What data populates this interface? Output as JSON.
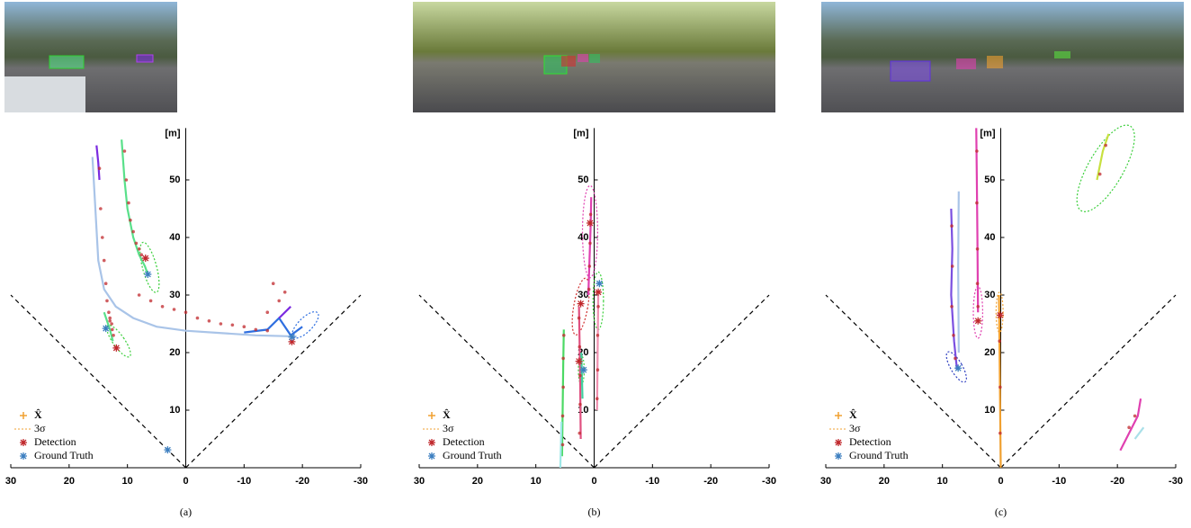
{
  "chart_data": [
    {
      "type": "line",
      "caption": "(a)",
      "ylabel": "[m]",
      "xlim": [
        30,
        -30
      ],
      "ylim": [
        0,
        59
      ],
      "xticks": [
        30,
        20,
        10,
        0,
        -10,
        -20,
        -30
      ],
      "yticks": [
        10,
        20,
        30,
        40,
        50
      ],
      "legend": [
        {
          "name": "X̂",
          "color": "#f0a030"
        },
        {
          "name": "3σ",
          "color": "#f0a030"
        },
        {
          "name": "Detection",
          "color": "#c0282c"
        },
        {
          "name": "Ground Truth",
          "color": "#3d7fc0"
        }
      ],
      "tracks": [
        {
          "color": "#7b2be0",
          "x": [
            15.3,
            15.0,
            14.8
          ],
          "y": [
            56,
            53,
            50
          ]
        },
        {
          "color": "#a9c4e8",
          "x": [
            16,
            15.5,
            15,
            14,
            12,
            9,
            5,
            0,
            -6,
            -12,
            -19
          ],
          "y": [
            54,
            45,
            36,
            31,
            28,
            26,
            24.5,
            23.8,
            23.4,
            23,
            22.8
          ]
        },
        {
          "color": "#59e08a",
          "x": [
            11,
            10.5,
            10,
            9,
            8,
            7,
            6.5
          ],
          "y": [
            57,
            50,
            45,
            40,
            37,
            35,
            33.6
          ]
        },
        {
          "color": "#2f6fe0",
          "x": [
            -10,
            -14,
            -16,
            -18,
            -20
          ],
          "y": [
            23.5,
            24,
            26,
            23,
            24.5
          ]
        },
        {
          "color": "#7b2be0",
          "x": [
            -16,
            -18
          ],
          "y": [
            26,
            28
          ]
        },
        {
          "color": "#59e08a",
          "x": [
            14,
            13,
            12.5
          ],
          "y": [
            27,
            24,
            22
          ]
        }
      ],
      "detections": {
        "x": [
          14.8,
          14.6,
          14.3,
          14.0,
          13.7,
          13.5,
          13.2,
          13.0,
          10.5,
          10.2,
          9.8,
          9.5,
          9,
          8.5,
          8,
          7.6,
          13,
          12.7,
          12.6,
          12.4,
          8,
          6,
          4,
          2,
          0,
          -2,
          -4,
          -6,
          -8,
          -10,
          -12,
          -14,
          -16,
          -17,
          -15,
          -14
        ],
        "y": [
          52,
          45,
          40,
          36,
          32,
          29,
          27,
          25.5,
          55,
          50,
          46,
          43,
          41,
          39,
          38,
          37,
          26,
          25,
          24,
          23,
          30,
          29,
          28,
          27.5,
          27,
          26,
          25.5,
          25,
          24.8,
          24.5,
          24,
          23.8,
          29,
          30.5,
          32,
          27
        ]
      },
      "detection_stars": {
        "x": [
          6.9,
          11.9,
          -18.2
        ],
        "y": [
          36.4,
          20.8,
          21.9
        ]
      },
      "ground_truth": {
        "x": [
          6.5,
          13.7,
          -18.2,
          3.1
        ],
        "y": [
          33.6,
          24.2,
          22.7,
          3.1
        ]
      },
      "ellipses": [
        {
          "color": "#3ccf3c",
          "cx": 6.2,
          "cy": 34.8,
          "rx": 1.2,
          "ry": 4.5,
          "angle": -15
        },
        {
          "color": "#3ccf3c",
          "cx": 11.5,
          "cy": 22,
          "rx": 1,
          "ry": 3.3,
          "angle": -35
        },
        {
          "color": "#2f6fe0",
          "cx": -20.5,
          "cy": 24.8,
          "rx": 1.2,
          "ry": 3,
          "angle": 45
        }
      ]
    },
    {
      "type": "line",
      "caption": "(b)",
      "ylabel": "[m]",
      "xlim": [
        30,
        -30
      ],
      "ylim": [
        0,
        59
      ],
      "xticks": [
        30,
        20,
        10,
        0,
        -10,
        -20,
        -30
      ],
      "yticks": [
        10,
        20,
        30,
        40,
        50
      ],
      "legend": [
        {
          "name": "X̂",
          "color": "#f0a030"
        },
        {
          "name": "3σ",
          "color": "#f0a030"
        },
        {
          "name": "Detection",
          "color": "#c0282c"
        },
        {
          "name": "Ground Truth",
          "color": "#3d7fc0"
        }
      ],
      "tracks": [
        {
          "color": "#e040b0",
          "x": [
            0.5,
            0.6,
            0.8,
            1
          ],
          "y": [
            47,
            42,
            36,
            30
          ]
        },
        {
          "color": "#e05080",
          "x": [
            2.3,
            2.4,
            2.5,
            2.6
          ],
          "y": [
            5,
            15,
            22,
            28
          ]
        },
        {
          "color": "#4cd964",
          "x": [
            5.5,
            5.4,
            5.3,
            5.2
          ],
          "y": [
            2,
            10,
            18,
            24
          ]
        },
        {
          "color": "#9ee8e8",
          "x": [
            5.8,
            5.6
          ],
          "y": [
            0,
            8
          ]
        },
        {
          "color": "#f090b0",
          "x": [
            -0.5,
            -0.6,
            -0.7
          ],
          "y": [
            10,
            20,
            30
          ]
        },
        {
          "color": "#40d0a0",
          "x": [
            2,
            2.2
          ],
          "y": [
            12,
            20
          ]
        }
      ],
      "detections": {
        "x": [
          5.4,
          5.4,
          5.3,
          5.3,
          5.2,
          2.5,
          2.4,
          2.4,
          2.5,
          2.6,
          0.6,
          0.7,
          0.8,
          0.9,
          -0.5,
          -0.6,
          -0.6,
          -0.7
        ],
        "y": [
          4,
          9,
          14,
          19,
          23,
          6,
          11,
          16,
          21,
          26,
          44,
          39,
          35,
          31,
          12,
          17,
          23,
          28
        ]
      },
      "detection_stars": {
        "x": [
          0.7,
          2.3,
          2.6,
          -0.7
        ],
        "y": [
          42.5,
          28.5,
          18.5,
          30.5
        ]
      },
      "ground_truth": {
        "x": [
          -0.9,
          1.8
        ],
        "y": [
          32,
          17
        ]
      },
      "ellipses": [
        {
          "color": "#e040b0",
          "cx": 0.7,
          "cy": 41,
          "rx": 1.3,
          "ry": 8,
          "angle": 0
        },
        {
          "color": "#d03030",
          "cx": 2.3,
          "cy": 28,
          "rx": 1.2,
          "ry": 5,
          "angle": 10
        },
        {
          "color": "#3ccf3c",
          "cx": -0.7,
          "cy": 29,
          "rx": 0.9,
          "ry": 5,
          "angle": 0
        },
        {
          "color": "#3ccf3c",
          "cx": 2.2,
          "cy": 17,
          "rx": 0.5,
          "ry": 2.5,
          "angle": 0
        }
      ]
    },
    {
      "type": "line",
      "caption": "(c)",
      "ylabel": "[m]",
      "xlim": [
        30,
        -30
      ],
      "ylim": [
        0,
        59
      ],
      "xticks": [
        30,
        20,
        10,
        0,
        -10,
        -20,
        -30
      ],
      "yticks": [
        10,
        20,
        30,
        40,
        50
      ],
      "legend": [
        {
          "name": "X̂",
          "color": "#f0a030"
        },
        {
          "name": "3σ",
          "color": "#f0a030"
        },
        {
          "name": "Detection",
          "color": "#c0282c"
        },
        {
          "name": "Ground Truth",
          "color": "#3d7fc0"
        }
      ],
      "tracks": [
        {
          "color": "#7b4fe0",
          "x": [
            8.5,
            8.3,
            8.5,
            8,
            7.5
          ],
          "y": [
            45,
            38,
            30,
            22,
            17
          ]
        },
        {
          "color": "#a9c4e8",
          "x": [
            7.2,
            7.3,
            7.2
          ],
          "y": [
            48,
            35,
            20
          ]
        },
        {
          "color": "#e040b0",
          "x": [
            4.2,
            4.1,
            4,
            3.9
          ],
          "y": [
            59,
            50,
            40,
            27
          ]
        },
        {
          "color": "#f0a030",
          "x": [
            0.3,
            0.2,
            0.1,
            0
          ],
          "y": [
            30,
            20,
            10,
            0
          ]
        },
        {
          "color": "#c8e040",
          "x": [
            -16.5,
            -17.5,
            -18.5
          ],
          "y": [
            50,
            55,
            58
          ]
        },
        {
          "color": "#e040b0",
          "x": [
            -20.5,
            -22,
            -23.5,
            -24
          ],
          "y": [
            3,
            6,
            9,
            12
          ]
        },
        {
          "color": "#a9e0e8",
          "x": [
            -23,
            -24.5
          ],
          "y": [
            5,
            7
          ]
        }
      ],
      "detections": {
        "x": [
          8.4,
          8.3,
          8.4,
          8.1,
          7.8,
          4.1,
          4.1,
          4,
          4,
          3.9,
          0.2,
          0.1,
          0.1,
          -17,
          -18,
          -22,
          -23
        ],
        "y": [
          42,
          35,
          28,
          23,
          19,
          55,
          46,
          38,
          32,
          28,
          22,
          14,
          6,
          51,
          56,
          7,
          9
        ]
      },
      "detection_stars": {
        "x": [
          3.9,
          0.1
        ],
        "y": [
          25.5,
          26.5
        ]
      },
      "ground_truth": {
        "x": [
          7.3
        ],
        "y": [
          17.3
        ]
      },
      "ellipses": [
        {
          "color": "#e040b0",
          "cx": 3.9,
          "cy": 27,
          "rx": 0.8,
          "ry": 4.5,
          "angle": 0
        },
        {
          "color": "#2f3fc0",
          "cx": 7.6,
          "cy": 17.5,
          "rx": 1,
          "ry": 3,
          "angle": -30
        },
        {
          "color": "#3ccf3c",
          "cx": -18,
          "cy": 52,
          "rx": 3,
          "ry": 8.5,
          "angle": 30
        },
        {
          "color": "#f0a030",
          "cx": 0.2,
          "cy": 27,
          "rx": 0.6,
          "ry": 3.5,
          "angle": 0
        }
      ]
    }
  ]
}
